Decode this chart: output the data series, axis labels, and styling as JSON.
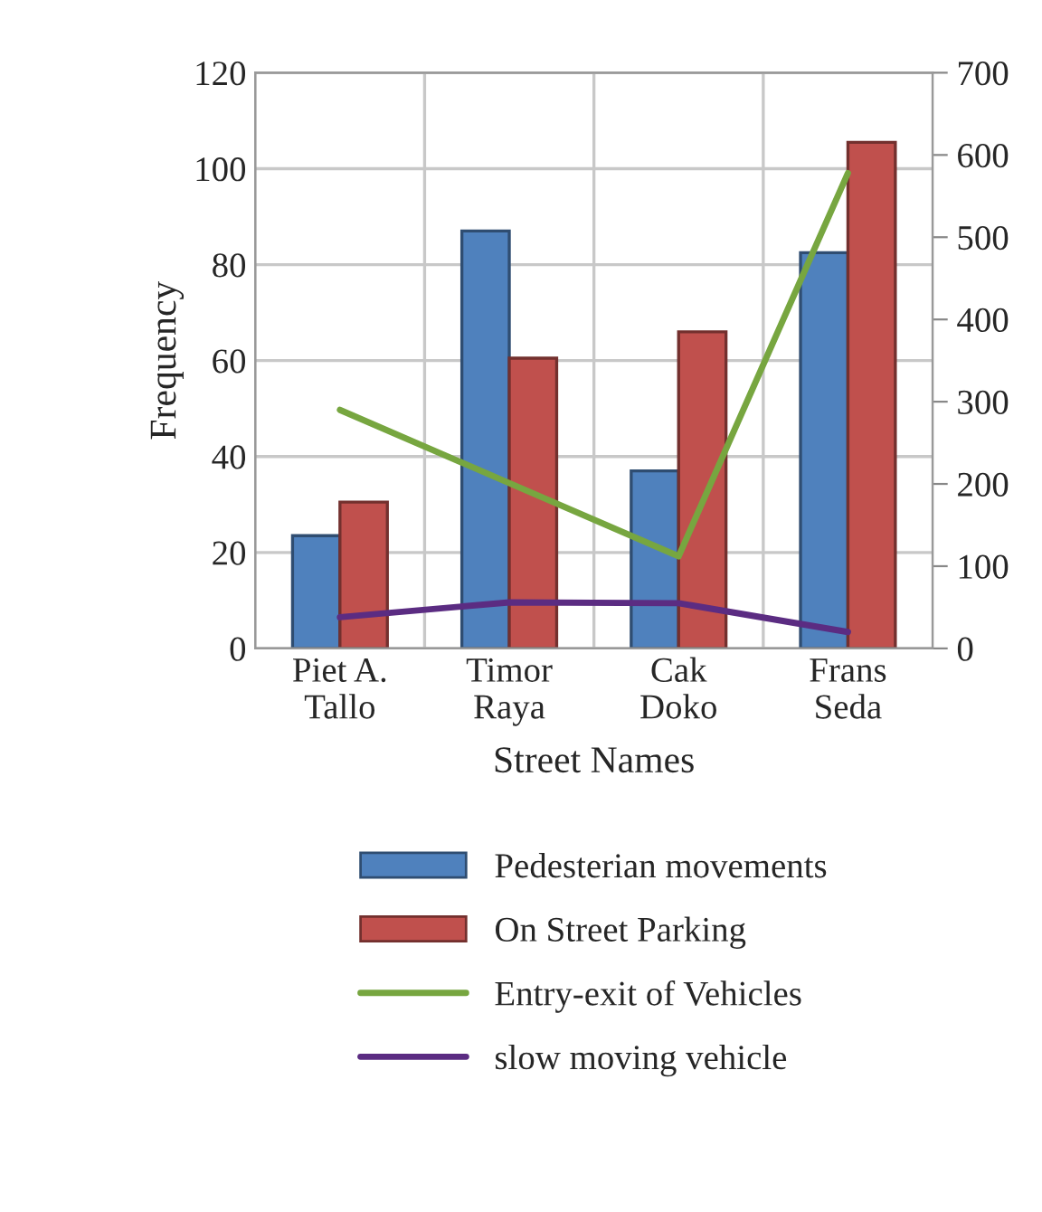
{
  "chart_data": {
    "type": "bar",
    "xlabel": "Street Names",
    "ylabel": "Frequency",
    "categories": [
      "Piet A.\nTallo",
      "Timor\nRaya",
      "Cak\nDoko",
      "Frans\nSeda"
    ],
    "series": [
      {
        "name": "Pedesterian movements",
        "color": "#4f81bd",
        "values": [
          23.5,
          87,
          37,
          82.5
        ]
      },
      {
        "name": "On Street Parking",
        "color": "#c0504d",
        "values": [
          30.5,
          60.5,
          66,
          105.5
        ]
      },
      {
        "name": "Entry-exit of Vehicles",
        "type": "line",
        "axis": "y2",
        "color": "#77a640",
        "values": [
          290,
          201,
          112,
          578
        ]
      },
      {
        "name": "slow moving vehicle",
        "type": "line",
        "axis": "y2",
        "color": "#5b2c82",
        "values": [
          38,
          56,
          55,
          20
        ]
      }
    ],
    "ylim": [
      0,
      120
    ],
    "yticks": [
      0,
      20,
      40,
      60,
      80,
      100,
      120
    ],
    "y2lim": [
      0,
      700
    ],
    "y2ticks": [
      0,
      100,
      200,
      300,
      400,
      500,
      600,
      700
    ],
    "grid": true,
    "legend": "bottom",
    "marker": "none",
    "line_style": "solid"
  }
}
